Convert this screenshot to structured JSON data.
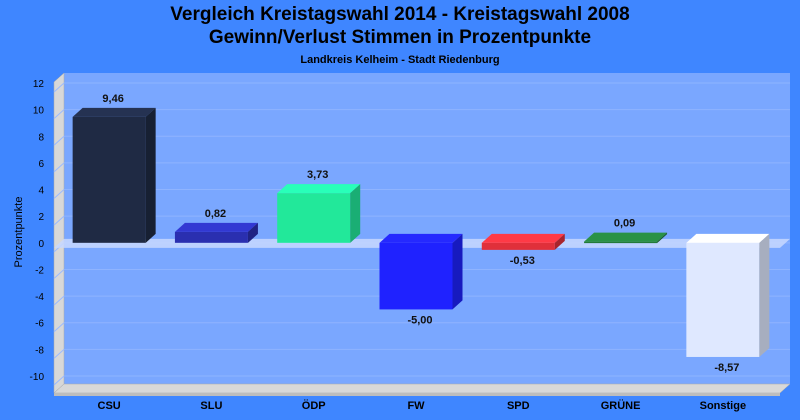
{
  "title": "Vergleich Kreistagswahl 2014 - Kreistagswahl 2008",
  "subtitle": "Gewinn/Verlust Stimmen in Prozentpunkte",
  "caption": "Landkreis Kelheim - Stadt Riedenburg",
  "chart_data": {
    "type": "bar",
    "title": "Vergleich Kreistagswahl 2014 - Kreistagswahl 2008",
    "subtitle": "Gewinn/Verlust Stimmen in Prozentpunkte",
    "ylabel": "Prozentpunkte",
    "xlabel": "",
    "ylim": [
      -10,
      12
    ],
    "yticks": [
      12,
      10,
      8,
      6,
      4,
      2,
      0,
      -2,
      -4,
      -6,
      -8,
      -10
    ],
    "grid": true,
    "categories": [
      "CSU",
      "SLU",
      "ÖDP",
      "FW",
      "SPD",
      "GRÜNE",
      "Sonstige"
    ],
    "values": [
      9.46,
      0.82,
      3.73,
      -5.0,
      -0.53,
      0.09,
      -8.57
    ],
    "value_labels": [
      "9,46",
      "0,82",
      "3,73",
      "-5,00",
      "-0,53",
      "0,09",
      "-8,57"
    ],
    "colors": [
      "#1f2a44",
      "#2a2fb0",
      "#22e89a",
      "#1f22ff",
      "#e0303a",
      "#237a3a",
      "#dfe8ff"
    ],
    "background": "#3f86ff",
    "plot_background": "#7aa7ff"
  }
}
